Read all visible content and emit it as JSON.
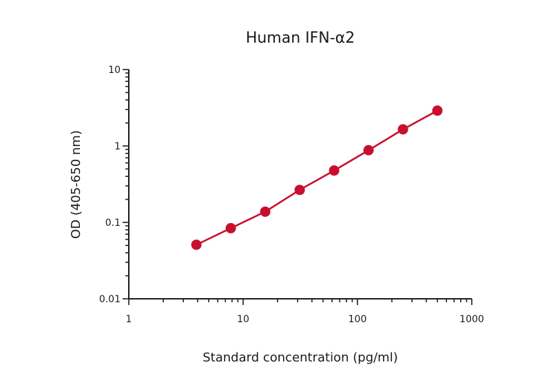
{
  "chart_data": {
    "type": "line",
    "title": "Human IFN-α2",
    "xlabel": "Standard concentration (pg/ml)",
    "ylabel": "OD (405-650 nm)",
    "x_scale": "log",
    "y_scale": "log",
    "xlim": [
      1,
      1000
    ],
    "ylim": [
      0.01,
      10
    ],
    "x_ticks": [
      "1",
      "10",
      "100",
      "1000"
    ],
    "y_ticks": [
      "0.01",
      "0.1",
      "1",
      "10"
    ],
    "grid": false,
    "legend": "none",
    "series": [
      {
        "color": "#c8102e",
        "x": [
          3.9,
          7.8,
          15.6,
          31.25,
          62.5,
          125,
          250,
          500
        ],
        "y": [
          0.051,
          0.084,
          0.138,
          0.266,
          0.477,
          0.88,
          1.65,
          2.9
        ]
      }
    ]
  }
}
